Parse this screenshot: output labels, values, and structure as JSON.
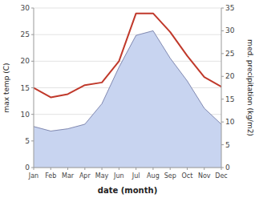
{
  "chart_data": {
    "type": "line",
    "x": [
      1,
      2,
      3,
      4,
      5,
      6,
      7,
      8,
      9,
      10,
      11,
      12
    ],
    "xlim": [
      1,
      12
    ],
    "xticks": [
      {
        "value": 1,
        "label": "Jan"
      },
      {
        "value": 2,
        "label": "Feb"
      },
      {
        "value": 3,
        "label": "Mar"
      },
      {
        "value": 4,
        "label": "Apr"
      },
      {
        "value": 5,
        "label": "May"
      },
      {
        "value": 6,
        "label": "Jun"
      },
      {
        "value": 7,
        "label": "Jul"
      },
      {
        "value": 8,
        "label": "Aug"
      },
      {
        "value": 9,
        "label": "Sep"
      },
      {
        "value": 10,
        "label": "Oct"
      },
      {
        "value": 11,
        "label": "Nov"
      },
      {
        "value": 12,
        "label": "Dec"
      }
    ],
    "xlabel": "date (month)",
    "ylabel": "max temp (C)",
    "y2label": "med. precipitation (kg/m2)",
    "ylim": [
      0,
      30
    ],
    "yticks": [
      0,
      5,
      10,
      15,
      20,
      25,
      30
    ],
    "y2lim": [
      0,
      35
    ],
    "y2ticks": [
      0,
      5,
      10,
      15,
      20,
      25,
      30,
      35
    ],
    "grid": true,
    "series": [
      {
        "type": "area",
        "axis": "y2",
        "color": "#c8d4f0",
        "values": [
          9.0,
          8.0,
          8.5,
          9.5,
          14.0,
          22.0,
          29.0,
          30.0,
          24.0,
          19.0,
          13.0,
          9.5
        ]
      },
      {
        "type": "line",
        "color": "#c0392b",
        "values": [
          15.0,
          13.2,
          13.8,
          15.5,
          16.0,
          20.0,
          29.0,
          29.0,
          25.5,
          21.0,
          17.0,
          15.2
        ]
      }
    ]
  }
}
